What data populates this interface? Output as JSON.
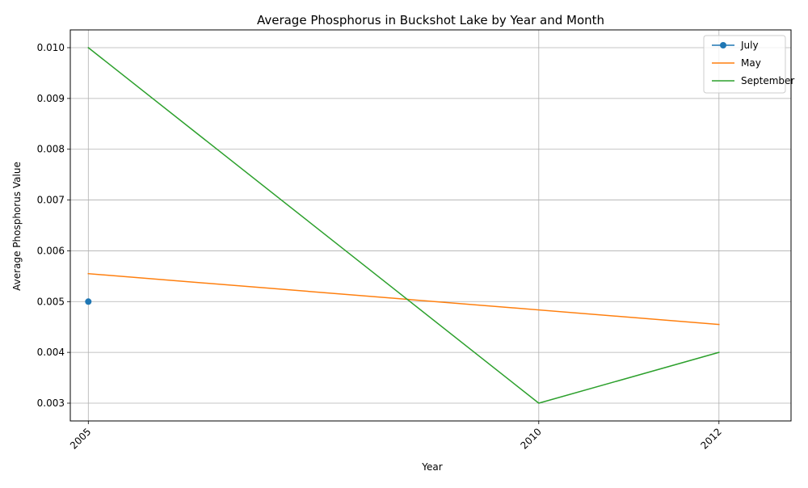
{
  "chart_data": {
    "type": "line",
    "title": "Average Phosphorus in Buckshot Lake by Year and Month",
    "xlabel": "Year",
    "ylabel": "Average Phosphorus Value",
    "xlim": [
      2004.8,
      2012.8
    ],
    "ylim": [
      0.00265,
      0.01035
    ],
    "xticks": [
      2005,
      2010,
      2012
    ],
    "yticks": [
      0.003,
      0.004,
      0.005,
      0.006,
      0.007,
      0.008,
      0.009,
      0.01
    ],
    "ytick_labels": [
      "0.003",
      "0.004",
      "0.005",
      "0.006",
      "0.007",
      "0.008",
      "0.009",
      "0.010"
    ],
    "grid": true,
    "legend_position": "top-right",
    "series": [
      {
        "name": "July",
        "color": "#1f77b4",
        "marker": "circle",
        "points": [
          [
            2005,
            0.005
          ]
        ]
      },
      {
        "name": "May",
        "color": "#ff7f0e",
        "marker": "none",
        "points": [
          [
            2005,
            0.00555
          ],
          [
            2012,
            0.00455
          ]
        ]
      },
      {
        "name": "September",
        "color": "#2ca02c",
        "marker": "none",
        "points": [
          [
            2005,
            0.01
          ],
          [
            2010,
            0.003
          ],
          [
            2012,
            0.004
          ]
        ]
      }
    ]
  }
}
